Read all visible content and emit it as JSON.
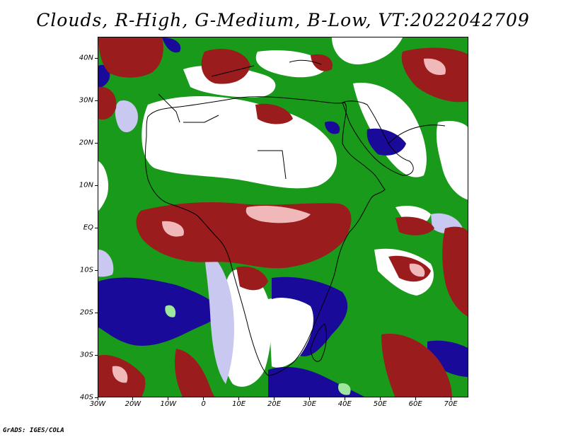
{
  "title": "Clouds, R-High, G-Medium, B-Low, VT:2022042709",
  "credit": "GrADS: IGES/COLA",
  "map": {
    "lon_range": [
      -30,
      75
    ],
    "lat_range": [
      -40,
      45
    ],
    "x_ticks": [
      {
        "value": -30,
        "label": "30W"
      },
      {
        "value": -20,
        "label": "20W"
      },
      {
        "value": -10,
        "label": "10W"
      },
      {
        "value": 0,
        "label": "0"
      },
      {
        "value": 10,
        "label": "10E"
      },
      {
        "value": 20,
        "label": "20E"
      },
      {
        "value": 30,
        "label": "30E"
      },
      {
        "value": 40,
        "label": "40E"
      },
      {
        "value": 50,
        "label": "50E"
      },
      {
        "value": 60,
        "label": "60E"
      },
      {
        "value": 70,
        "label": "70E"
      }
    ],
    "y_ticks": [
      {
        "value": 40,
        "label": "40N"
      },
      {
        "value": 30,
        "label": "30N"
      },
      {
        "value": 20,
        "label": "20N"
      },
      {
        "value": 10,
        "label": "10N"
      },
      {
        "value": 0,
        "label": "EQ"
      },
      {
        "value": -10,
        "label": "10S"
      },
      {
        "value": -20,
        "label": "20S"
      },
      {
        "value": -30,
        "label": "30S"
      },
      {
        "value": -40,
        "label": "40S"
      }
    ],
    "colors": {
      "high": "#9b1c1c",
      "high_light": "#f0b8b8",
      "medium": "#1a9a1a",
      "medium_light": "#9ee89e",
      "low": "#1a0a9a",
      "low_light": "#c8c8f0",
      "clear": "#ffffff",
      "coastline": "#000000"
    }
  }
}
